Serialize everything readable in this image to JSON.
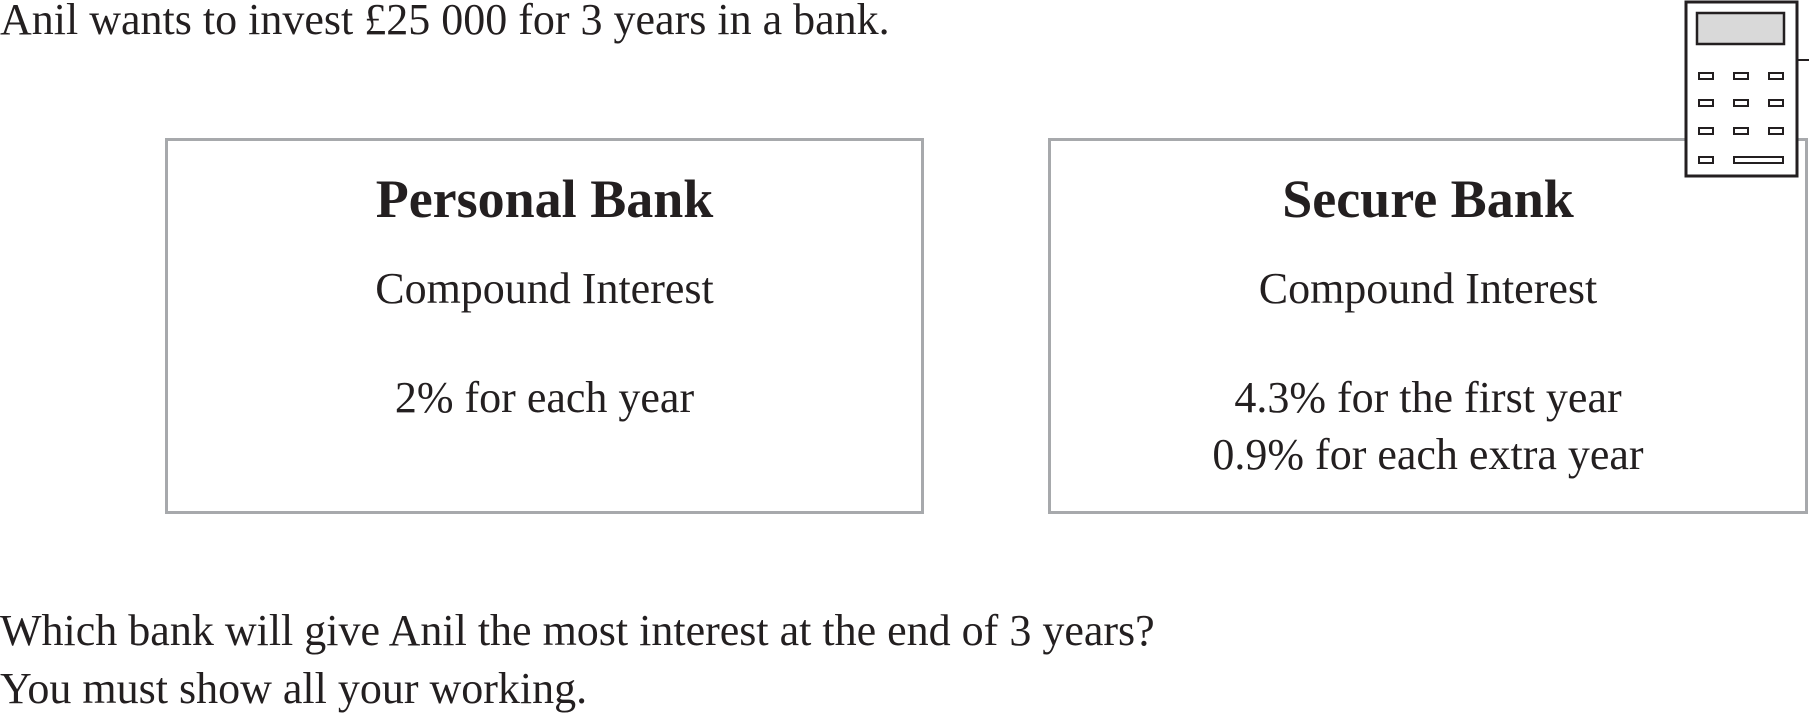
{
  "intro": "Anil wants to invest £25 000 for 3 years in a bank.",
  "calculator_icon": "calculator-icon",
  "banks": [
    {
      "name": "Personal Bank",
      "interest_type": "Compound Interest",
      "rates": [
        "2% for each year"
      ]
    },
    {
      "name": "Secure Bank",
      "interest_type": "Compound Interest",
      "rates": [
        "4.3% for the first year",
        "0.9% for each extra year"
      ]
    }
  ],
  "question": {
    "line1": "Which bank will give Anil the most interest at the end of 3 years?",
    "line2": "You must show all your working."
  }
}
